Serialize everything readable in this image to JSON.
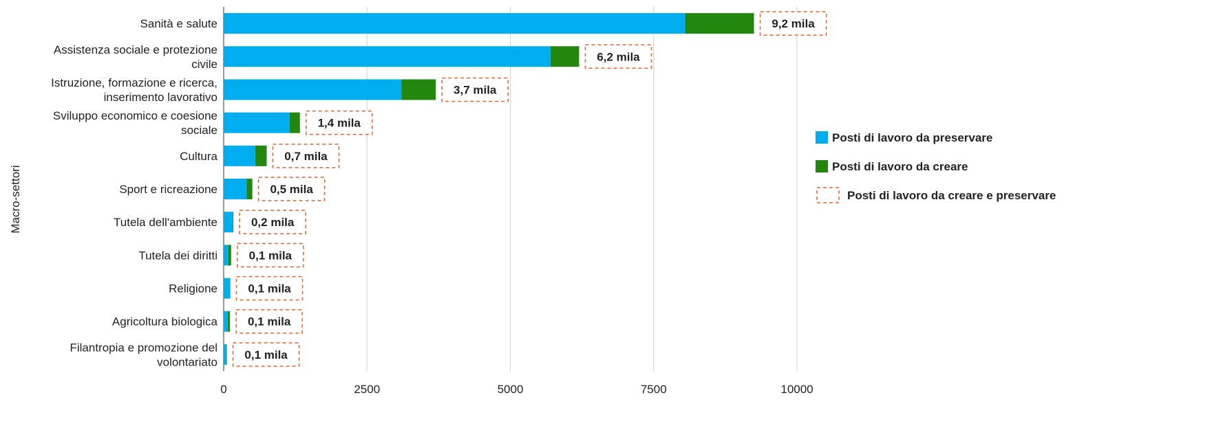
{
  "chart_data": {
    "type": "bar",
    "orientation": "horizontal",
    "stacked": true,
    "categories": [
      "Sanità e salute",
      "Assistenza sociale e protezione civile",
      "Istruzione, formazione e ricerca, inserimento lavorativo",
      "Sviluppo economico e coesione sociale",
      "Cultura",
      "Sport e ricreazione",
      "Tutela dell'ambiente",
      "Tutela dei diritti",
      "Religione",
      "Agricoltura biologica",
      "Filantropia e promozione del volontariato"
    ],
    "category_lines": [
      [
        "Sanità e salute"
      ],
      [
        "Assistenza sociale e protezione",
        "civile"
      ],
      [
        "Istruzione, formazione e ricerca,",
        "inserimento lavorativo"
      ],
      [
        "Sviluppo economico e coesione",
        "sociale"
      ],
      [
        "Cultura"
      ],
      [
        "Sport e ricreazione"
      ],
      [
        "Tutela dell'ambiente"
      ],
      [
        "Tutela dei diritti"
      ],
      [
        "Religione"
      ],
      [
        "Agricoltura biologica"
      ],
      [
        "Filantropia e promozione del",
        "volontariato"
      ]
    ],
    "series": [
      {
        "name": "Posti di lavoro da preservare",
        "color": "#00AEEF",
        "values": [
          8050,
          5700,
          3100,
          1150,
          550,
          400,
          160,
          80,
          110,
          70,
          50
        ]
      },
      {
        "name": "Posti di lavoro da creare",
        "color": "#23860E",
        "values": [
          1200,
          500,
          600,
          180,
          200,
          100,
          10,
          50,
          5,
          40,
          5
        ]
      }
    ],
    "totals": {
      "name": "Posti di lavoro da creare e preservare",
      "border_color": "#E8622A",
      "labels": [
        "9,2 mila",
        "6,2 mila",
        "3,7 mila",
        "1,4 mila",
        "0,7 mila",
        "0,5 mila",
        "0,2 mila",
        "0,1 mila",
        "0,1 mila",
        "0,1 mila",
        "0,1 mila"
      ]
    },
    "xticks": [
      "0",
      "2500",
      "5000",
      "7500",
      "10000"
    ],
    "xtick_values": [
      0,
      2500,
      5000,
      7500,
      10000
    ],
    "xlim": [
      0,
      10000
    ],
    "xlabel": "",
    "ylabel": "Macro-settori",
    "grid": "vertical",
    "legend_position": "right"
  }
}
